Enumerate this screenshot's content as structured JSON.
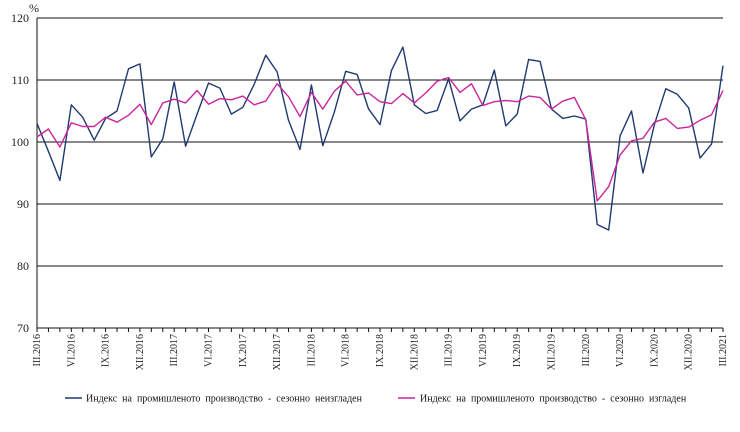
{
  "chart_data": {
    "type": "line",
    "ylabel": "%",
    "ylim": [
      70,
      120
    ],
    "yticks": [
      70,
      80,
      90,
      100,
      110,
      120
    ],
    "grid": "horizontal",
    "x": [
      "III.2016",
      "IV.2016",
      "V.2016",
      "VI.2016",
      "VII.2016",
      "VIII.2016",
      "IX.2016",
      "X.2016",
      "XI.2016",
      "XII.2016",
      "I.2017",
      "II.2017",
      "III.2017",
      "IV.2017",
      "V.2017",
      "VI.2017",
      "VII.2017",
      "VIII.2017",
      "IX.2017",
      "X.2017",
      "XI.2017",
      "XII.2017",
      "I.2018",
      "II.2018",
      "III.2018",
      "IV.2018",
      "V.2018",
      "VI.2018",
      "VII.2018",
      "VIII.2018",
      "IX.2018",
      "X.2018",
      "XI.2018",
      "XII.2018",
      "I.2019",
      "II.2019",
      "III.2019",
      "IV.2019",
      "V.2019",
      "VI.2019",
      "VII.2019",
      "VIII.2019",
      "IX.2019",
      "X.2019",
      "XI.2019",
      "XII.2019",
      "I.2020",
      "II.2020",
      "III.2020",
      "IV.2020",
      "V.2020",
      "VI.2020",
      "VII.2020",
      "VIII.2020",
      "IX.2020",
      "X.2020",
      "XI.2020",
      "XII.2020",
      "I.2021",
      "II.2021",
      "III.2021"
    ],
    "xtick_labels": [
      "III.2016",
      "VI.2016",
      "IX.2016",
      "XII.2016",
      "III.2017",
      "VI.2017",
      "IX.2017",
      "XII.2017",
      "III.2018",
      "VI.2018",
      "IX.2018",
      "XII.2018",
      "III.2019",
      "VI.2019",
      "IX.2019",
      "XII.2019",
      "III.2020",
      "VI.2020",
      "IX.2020",
      "XII.2020",
      "III.2021"
    ],
    "series": [
      {
        "name": "Индекс на промишленото производство - сезонно неизгладен",
        "color": "#1f3a6e",
        "values": [
          103.0,
          98.5,
          93.8,
          106.0,
          104.0,
          100.3,
          103.8,
          105.0,
          111.8,
          112.6,
          97.6,
          100.5,
          109.7,
          99.3,
          104.5,
          109.5,
          108.7,
          104.5,
          105.6,
          109.3,
          114.0,
          111.3,
          103.5,
          98.8,
          109.2,
          99.4,
          104.8,
          111.4,
          110.9,
          105.3,
          102.8,
          111.5,
          115.3,
          106.0,
          104.6,
          105.1,
          110.2,
          103.4,
          105.3,
          106.0,
          111.6,
          102.6,
          104.5,
          113.3,
          113.0,
          105.3,
          103.8,
          104.2,
          103.7,
          86.7,
          85.8,
          101.0,
          105.0,
          95.0,
          102.8,
          108.6,
          107.7,
          105.5,
          97.4,
          99.7,
          112.3
        ]
      },
      {
        "name": "Индекс на промишленото производство - сезонно изгладен",
        "color": "#c9269d",
        "values": [
          100.8,
          102.1,
          99.2,
          103.1,
          102.5,
          102.5,
          104.0,
          103.2,
          104.3,
          106.1,
          102.8,
          106.3,
          106.9,
          106.3,
          108.3,
          106.1,
          107.0,
          106.8,
          107.4,
          106.0,
          106.6,
          109.4,
          107.3,
          104.1,
          108.0,
          105.3,
          108.2,
          109.8,
          107.6,
          107.9,
          106.5,
          106.2,
          107.8,
          106.3,
          107.9,
          109.8,
          110.4,
          108.0,
          109.4,
          105.9,
          106.5,
          106.7,
          106.5,
          107.4,
          107.2,
          105.3,
          106.6,
          107.2,
          103.6,
          90.5,
          92.8,
          97.9,
          100.2,
          100.6,
          103.2,
          103.8,
          102.2,
          102.4,
          103.5,
          104.4,
          108.3
        ]
      }
    ],
    "legend": [
      "Индекс  на  промишленото  производство  -  сезонно  неизгладен",
      "Индекс  на  промишленото  производство  -  сезонно  изгладен"
    ]
  }
}
